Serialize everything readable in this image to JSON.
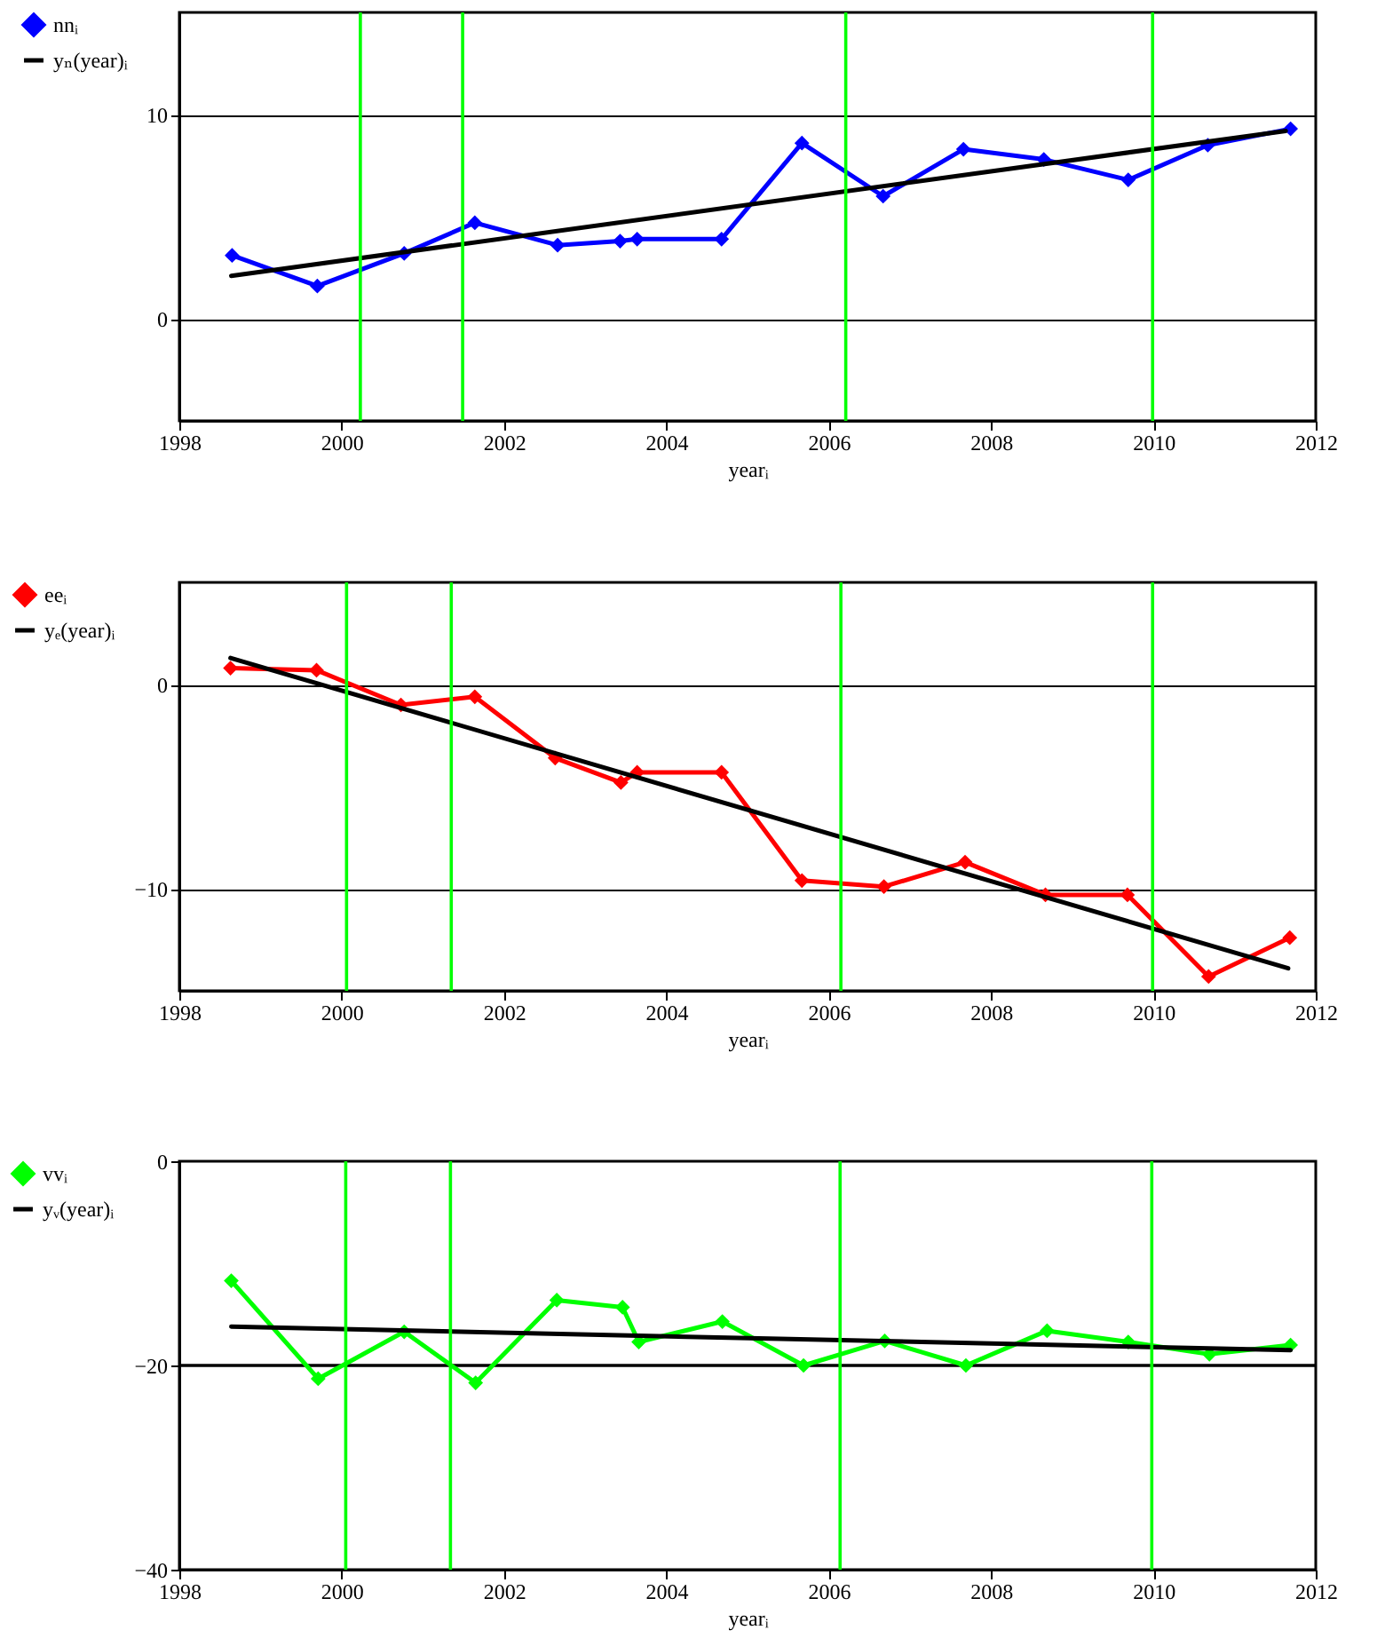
{
  "chart_data": [
    {
      "type": "line",
      "xlabel": "yearᵢ",
      "xlim": [
        1998,
        2012
      ],
      "xticks": [
        1998,
        2000,
        2002,
        2004,
        2006,
        2008,
        2010,
        2012
      ],
      "ylim": [
        -5,
        15
      ],
      "yticks": [
        0,
        10
      ],
      "grid": "y",
      "legend": "left",
      "line_style": "solid",
      "series": [
        {
          "name": "nnᵢ",
          "color": "#0000ff",
          "marker": "diamond",
          "x": [
            1998.65,
            1999.7,
            2000.77,
            2001.64,
            2002.66,
            2003.43,
            2003.64,
            2004.68,
            2005.67,
            2006.67,
            2007.66,
            2008.65,
            2009.69,
            2010.67,
            2011.69
          ],
          "values": [
            3.1,
            1.6,
            3.2,
            4.7,
            3.6,
            3.8,
            3.9,
            3.9,
            8.6,
            6.0,
            8.3,
            7.8,
            6.8,
            8.5,
            9.3
          ]
        },
        {
          "name": "yₙ(year)ᵢ",
          "color": "#000000",
          "marker": "none",
          "x": [
            1998.64,
            2011.63
          ],
          "values": [
            2.1,
            9.2
          ]
        }
      ],
      "ref_lines": [
        {
          "axis": "x",
          "value": 2000.23,
          "color": "#00ff00"
        },
        {
          "axis": "x",
          "value": 2001.49,
          "color": "#00ff00"
        },
        {
          "axis": "x",
          "value": 2006.21,
          "color": "#00ff00"
        },
        {
          "axis": "x",
          "value": 2009.99,
          "color": "#00ff00"
        }
      ]
    },
    {
      "type": "line",
      "xlabel": "yearᵢ",
      "xlim": [
        1998,
        2012
      ],
      "xticks": [
        1998,
        2000,
        2002,
        2004,
        2006,
        2008,
        2010,
        2012
      ],
      "ylim": [
        -15,
        5
      ],
      "yticks": [
        -10,
        0
      ],
      "grid": "y",
      "legend": "left",
      "line_style": "solid",
      "series": [
        {
          "name": "eeᵢ",
          "color": "#ff0000",
          "marker": "diamond",
          "x": [
            1998.63,
            1999.69,
            2000.73,
            2001.64,
            2002.63,
            2003.44,
            2003.64,
            2004.68,
            2005.67,
            2006.68,
            2007.68,
            2008.67,
            2009.68,
            2010.68,
            2011.68
          ],
          "values": [
            0.8,
            0.7,
            -1.0,
            -0.6,
            -3.6,
            -4.8,
            -4.3,
            -4.3,
            -9.6,
            -9.9,
            -8.7,
            -10.3,
            -10.3,
            -14.3,
            -12.4
          ]
        },
        {
          "name": "yₑ(year)ᵢ",
          "color": "#000000",
          "marker": "none",
          "x": [
            1998.63,
            2011.66
          ],
          "values": [
            1.3,
            -13.9
          ]
        }
      ],
      "ref_lines": [
        {
          "axis": "x",
          "value": 2000.06,
          "color": "#00ff00"
        },
        {
          "axis": "x",
          "value": 2001.35,
          "color": "#00ff00"
        },
        {
          "axis": "x",
          "value": 2006.15,
          "color": "#00ff00"
        },
        {
          "axis": "x",
          "value": 2009.99,
          "color": "#00ff00"
        }
      ]
    },
    {
      "type": "line",
      "xlabel": "yearᵢ",
      "xlim": [
        1998,
        2012
      ],
      "xticks": [
        1998,
        2000,
        2002,
        2004,
        2006,
        2008,
        2010,
        2012
      ],
      "ylim": [
        -40,
        0
      ],
      "yticks": [
        -40,
        -20,
        0
      ],
      "legend": "left",
      "line_style": "solid",
      "series": [
        {
          "name": "vvᵢ",
          "color": "#00ff00",
          "marker": "diamond",
          "x": [
            1998.64,
            1999.71,
            2000.77,
            2001.65,
            2002.65,
            2003.46,
            2003.66,
            2004.69,
            2005.69,
            2006.69,
            2007.69,
            2008.69,
            2009.69,
            2010.69,
            2011.69
          ],
          "values": [
            -11.7,
            -21.3,
            -16.7,
            -21.7,
            -13.6,
            -14.3,
            -17.7,
            -15.7,
            -20.0,
            -17.6,
            -20.0,
            -16.6,
            -17.7,
            -18.9,
            -18.0
          ]
        },
        {
          "name": "yᵥ(year)ᵢ",
          "color": "#000000",
          "marker": "none",
          "x": [
            1998.64,
            2011.69
          ],
          "values": [
            -16.2,
            -18.5
          ]
        }
      ],
      "ref_lines": [
        {
          "axis": "y",
          "value": -20,
          "color": "#000000"
        },
        {
          "axis": "x",
          "value": 2000.05,
          "color": "#00ff00"
        },
        {
          "axis": "x",
          "value": 2001.34,
          "color": "#00ff00"
        },
        {
          "axis": "x",
          "value": 2006.14,
          "color": "#00ff00"
        },
        {
          "axis": "x",
          "value": 2009.98,
          "color": "#00ff00"
        }
      ]
    }
  ]
}
